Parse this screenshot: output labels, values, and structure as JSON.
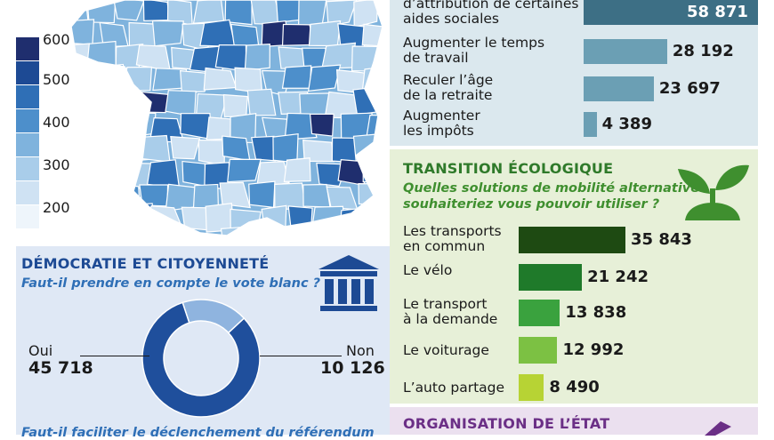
{
  "legend": {
    "ticks": [
      "600",
      "500",
      "400",
      "300",
      "200"
    ],
    "colors": [
      "#1f2e6e",
      "#1d4a94",
      "#2f6fb6",
      "#4d8fcb",
      "#7fb3dd",
      "#a9cdea",
      "#cfe2f3",
      "#eef5fb"
    ]
  },
  "democratie": {
    "title": "DÉMOCRATIE ET CITOYENNETÉ",
    "question": "Faut-il prendre en compte le vote blanc ?",
    "question2": "Faut-il faciliter le déclenchement du référendum",
    "yes_label": "Oui",
    "yes_value": "45 718",
    "no_label": "Non",
    "no_value": "10 126",
    "colors": {
      "yes": "#1f4f9c",
      "no": "#8fb4df"
    }
  },
  "retraite": {
    "colors": {
      "bar": "#6b9fb4",
      "bar_top": "#3d6f85"
    }
  },
  "ecologie": {
    "title": "TRANSITION ÉCOLOGIQUE",
    "question_line1": "Quelles solutions de mobilité alternatives",
    "question_line2": "souhaiteriez vous pouvoir utiliser ?",
    "icon": "plant-icon"
  },
  "etat": {
    "title": "ORGANISATION DE L’ÉTAT"
  },
  "institution_icon": "institution-icon",
  "chart_data": [
    {
      "type": "pie",
      "title": "Faut-il prendre en compte le vote blanc ?",
      "categories": [
        "Oui",
        "Non"
      ],
      "values": [
        45718,
        10126
      ]
    },
    {
      "type": "bar",
      "categories": [
        "…d’attribution de certaines aides sociales",
        "Augmenter le temps de travail",
        "Reculer l’âge de la retraite",
        "Augmenter les impôts"
      ],
      "labels": [
        [
          "d’attribution de certaines",
          "aides sociales"
        ],
        [
          "Augmenter le temps",
          "de travail"
        ],
        [
          "Reculer l’âge",
          "de la retraite"
        ],
        [
          "Augmenter",
          "les impôts"
        ]
      ],
      "values": [
        58871,
        28192,
        23697,
        4389
      ],
      "value_labels": [
        "58 871",
        "28 192",
        "23 697",
        "4 389"
      ],
      "max": 58871
    },
    {
      "type": "bar",
      "title": "TRANSITION ÉCOLOGIQUE",
      "categories": [
        "Les transports en commun",
        "Le vélo",
        "Le transport à la demande",
        "Le voiturage",
        "L’auto partage"
      ],
      "labels": [
        [
          "Les transports",
          "en commun"
        ],
        [
          "Le vélo"
        ],
        [
          "Le transport",
          "à la demande"
        ],
        [
          "Le voiturage"
        ],
        [
          "L’auto partage"
        ]
      ],
      "values": [
        35843,
        21242,
        13838,
        12992,
        8490
      ],
      "value_labels": [
        "35 843",
        "21 242",
        "13 838",
        "12 992",
        "8 490"
      ],
      "colors": [
        "#1e4a12",
        "#1f7a2a",
        "#3aa23e",
        "#7cc143",
        "#b7d334"
      ]
    }
  ]
}
